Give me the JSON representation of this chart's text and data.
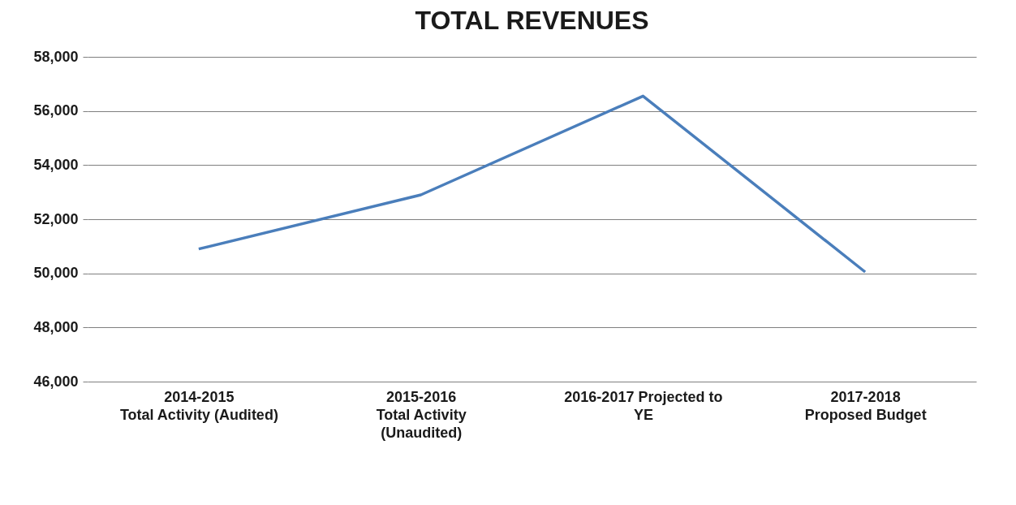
{
  "chart_data": {
    "type": "line",
    "title": "TOTAL REVENUES",
    "categories": [
      "2014-2015\nTotal Activity (Audited)",
      "2015-2016\nTotal Activity\n(Unaudited)",
      "2016-2017 Projected to\nYE",
      "2017-2018\nProposed Budget"
    ],
    "series": [
      {
        "color": "#4a7ebb",
        "values": [
          50900,
          52900,
          56550,
          50050
        ]
      }
    ],
    "ylim": [
      46000,
      58000
    ],
    "yticks": [
      {
        "value": 46000,
        "label": "46,000"
      },
      {
        "value": 48000,
        "label": "48,000"
      },
      {
        "value": 50000,
        "label": "50,000"
      },
      {
        "value": 52000,
        "label": "52,000"
      },
      {
        "value": 54000,
        "label": "54,000"
      },
      {
        "value": 56000,
        "label": "56,000"
      },
      {
        "value": 58000,
        "label": "58,000"
      }
    ],
    "grid": "y",
    "legend": false,
    "marker": "none",
    "line_style": "solid"
  }
}
